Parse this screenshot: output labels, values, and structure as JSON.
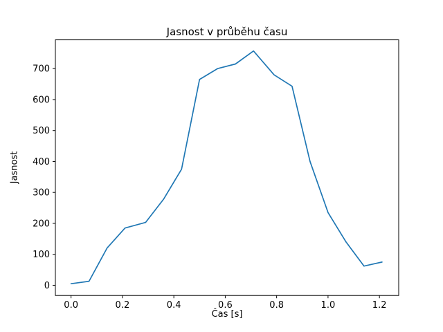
{
  "chart_data": {
    "type": "line",
    "title": "Jasnost v průběhu času",
    "xlabel": "Čas [s]",
    "ylabel": "Jasnost",
    "line_color": "#1f77b4",
    "grid": false,
    "legend": "none",
    "x": [
      0.0,
      0.07,
      0.14,
      0.21,
      0.29,
      0.36,
      0.43,
      0.5,
      0.57,
      0.64,
      0.71,
      0.79,
      0.86,
      0.93,
      1.0,
      1.07,
      1.14,
      1.21
    ],
    "y": [
      5,
      13,
      120,
      185,
      203,
      278,
      375,
      665,
      700,
      715,
      757,
      680,
      643,
      400,
      235,
      140,
      62,
      75
    ],
    "xticks": [
      0.0,
      0.2,
      0.4,
      0.6,
      0.8,
      1.0,
      1.2
    ],
    "xtick_labels": [
      "0.0",
      "0.2",
      "0.4",
      "0.6",
      "0.8",
      "1.0",
      "1.2"
    ],
    "yticks": [
      0,
      100,
      200,
      300,
      400,
      500,
      600,
      700
    ],
    "ytick_labels": [
      "0",
      "100",
      "200",
      "300",
      "400",
      "500",
      "600",
      "700"
    ],
    "xlim": [
      -0.061,
      1.275
    ],
    "ylim": [
      -33,
      793
    ]
  }
}
